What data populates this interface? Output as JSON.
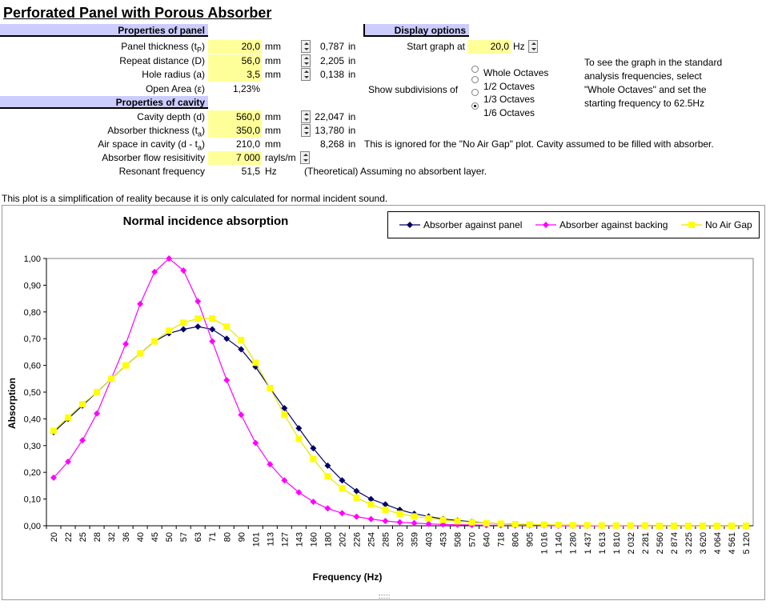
{
  "title": "Perforated Panel with Porous Absorber",
  "panel": {
    "header": "Properties of panel",
    "rows": [
      {
        "label_pre": "Panel thickness (t",
        "sub": "P",
        "label_post": ")",
        "value": "20,0",
        "unit": "mm",
        "inches": "0,787",
        "inch_unit": "in"
      },
      {
        "label_pre": "Repeat distance (D)",
        "sub": "",
        "label_post": "",
        "value": "56,0",
        "unit": "mm",
        "inches": "2,205",
        "inch_unit": "in"
      },
      {
        "label_pre": "Hole radius (a)",
        "sub": "",
        "label_post": "",
        "value": "3,5",
        "unit": "mm",
        "inches": "0,138",
        "inch_unit": "in"
      },
      {
        "label_pre": "Open Area (ε)",
        "sub": "",
        "label_post": "",
        "value": "1,23%",
        "unit": "",
        "inches": "",
        "inch_unit": ""
      }
    ]
  },
  "cavity": {
    "header": "Properties of cavity",
    "rows": [
      {
        "label_pre": "Cavity depth (d)",
        "sub": "",
        "label_post": "",
        "value": "560,0",
        "unit": "mm",
        "inches": "22,047",
        "inch_unit": "in"
      },
      {
        "label_pre": "Absorber thickness (t",
        "sub": "a",
        "label_post": ")",
        "value": "350,0",
        "unit": "mm",
        "inches": "13,780",
        "inch_unit": "in"
      },
      {
        "label_pre": "Air space in cavity (d - t",
        "sub": "a",
        "label_post": ")",
        "value": "210,0",
        "unit": "mm",
        "inches": "8,268",
        "inch_unit": "in"
      },
      {
        "label_pre": "Absorber flow resisitivity",
        "sub": "",
        "label_post": "",
        "value": "7 000",
        "unit": "rayls/m",
        "inches": "",
        "inch_unit": ""
      },
      {
        "label_pre": "Resonant frequency",
        "sub": "",
        "label_post": "",
        "value": "51,5",
        "unit": "Hz",
        "inches": "",
        "inch_unit": ""
      }
    ],
    "air_note": "This is ignored for the \"No Air Gap\" plot.  Cavity assumed to be filled with absorber.",
    "resonant_note": "(Theoretical) Assuming no absorbent layer."
  },
  "display": {
    "header": "Display options",
    "start_label": "Start graph at",
    "start_value": "20,0",
    "start_unit": "Hz",
    "subdiv_label": "Show subdivisions of",
    "options": [
      "Whole Octaves",
      "1/2 Octaves",
      "1/3 Octaves",
      "1/6 Octaves"
    ],
    "selected": "1/6 Octaves",
    "hint_lines": [
      "To see the graph in the standard",
      "analysis frequencies, select",
      "\"Whole Octaves\" and set the",
      "starting frequency to 62.5Hz"
    ]
  },
  "footnote": "This plot is a simplification of reality because it is only calculated for normal incident sound.",
  "colors": {
    "panel": "#000066",
    "backing": "#ff00ff",
    "nogap": "#ffff00",
    "header_bg": "#ccccff",
    "input_bg": "#ffff99"
  },
  "chart_data": {
    "type": "line",
    "title": "Normal incidence absorption",
    "xlabel": "Frequency (Hz)",
    "ylabel": "Absorption",
    "ylim": [
      0,
      1
    ],
    "yticks": [
      "0,00",
      "0,10",
      "0,20",
      "0,30",
      "0,40",
      "0,50",
      "0,60",
      "0,70",
      "0,80",
      "0,90",
      "1,00"
    ],
    "grid": false,
    "legend_position": "top-right",
    "categories": [
      "20",
      "22",
      "25",
      "28",
      "32",
      "36",
      "40",
      "45",
      "50",
      "57",
      "63",
      "71",
      "80",
      "90",
      "101",
      "113",
      "127",
      "143",
      "160",
      "180",
      "202",
      "226",
      "254",
      "285",
      "320",
      "359",
      "403",
      "453",
      "508",
      "570",
      "640",
      "718",
      "806",
      "905",
      "1 016",
      "1 140",
      "1 280",
      "1 437",
      "1 613",
      "1 810",
      "2 032",
      "2 281",
      "2 560",
      "2 874",
      "3 225",
      "3 620",
      "4 064",
      "4 561",
      "5 120"
    ],
    "series": [
      {
        "name": "Absorber against panel",
        "color": "#000066",
        "marker": "diamond",
        "values": [
          0.35,
          0.4,
          0.45,
          0.5,
          0.55,
          0.6,
          0.645,
          0.69,
          0.72,
          0.735,
          0.745,
          0.735,
          0.7,
          0.66,
          0.595,
          0.515,
          0.44,
          0.365,
          0.29,
          0.225,
          0.17,
          0.13,
          0.1,
          0.08,
          0.06,
          0.045,
          0.035,
          0.025,
          0.02,
          0.015,
          0.01,
          0.008,
          0.006,
          0.004,
          0.003,
          0.002,
          0.002,
          0.001,
          0.001,
          0.001,
          0.001,
          0.001,
          0.0,
          0.0,
          0.0,
          0.0,
          0.0,
          0.0,
          0.0
        ]
      },
      {
        "name": "Absorber against backing",
        "color": "#ff00ff",
        "marker": "diamond",
        "values": [
          0.18,
          0.24,
          0.32,
          0.42,
          0.55,
          0.68,
          0.83,
          0.95,
          1.0,
          0.955,
          0.84,
          0.69,
          0.545,
          0.415,
          0.31,
          0.23,
          0.17,
          0.125,
          0.09,
          0.065,
          0.047,
          0.034,
          0.025,
          0.018,
          0.013,
          0.01,
          0.007,
          0.005,
          0.004,
          0.003,
          0.002,
          0.002,
          0.001,
          0.001,
          0.001,
          0.0,
          0.0,
          0.0,
          0.0,
          0.0,
          0.0,
          0.0,
          0.0,
          0.0,
          0.0,
          0.0,
          0.0,
          0.0,
          0.0
        ]
      },
      {
        "name": "No Air Gap",
        "color": "#ffff00",
        "marker": "square",
        "values": [
          0.355,
          0.405,
          0.455,
          0.5,
          0.55,
          0.6,
          0.645,
          0.69,
          0.73,
          0.76,
          0.775,
          0.775,
          0.745,
          0.695,
          0.61,
          0.515,
          0.415,
          0.325,
          0.25,
          0.185,
          0.14,
          0.105,
          0.08,
          0.06,
          0.045,
          0.035,
          0.028,
          0.022,
          0.017,
          0.013,
          0.01,
          0.008,
          0.006,
          0.005,
          0.004,
          0.003,
          0.002,
          0.002,
          0.001,
          0.001,
          0.001,
          0.001,
          0.0,
          0.0,
          0.0,
          0.0,
          0.0,
          0.0,
          0.0
        ]
      }
    ]
  }
}
